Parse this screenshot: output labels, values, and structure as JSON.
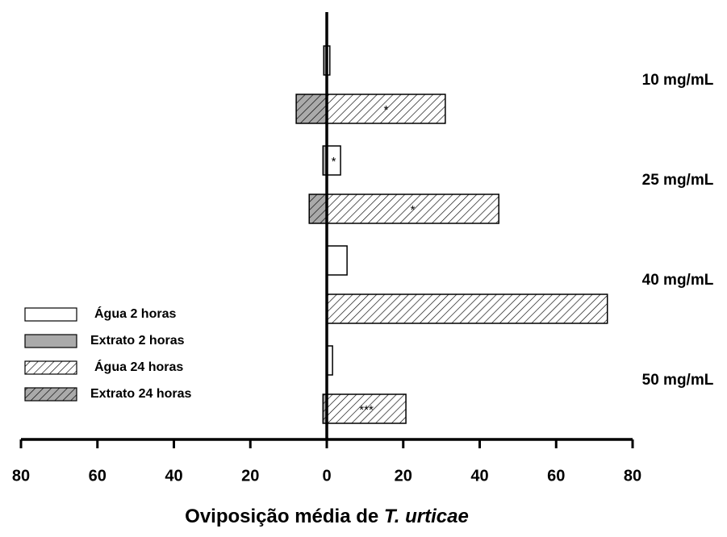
{
  "chart_data": {
    "type": "butterfly-bar",
    "categories": [
      "10 mg/mL",
      "25 mg/mL",
      "40 mg/mL",
      "50 mg/mL"
    ],
    "series": [
      {
        "name": "Água 2 horas",
        "color": "#ffffff",
        "hatch": false,
        "side": "right",
        "values": [
          0.8,
          3.6,
          5.3,
          1.5
        ],
        "significance": [
          null,
          "*",
          null,
          null
        ]
      },
      {
        "name": "Extrato 2 horas",
        "color": "#aaaaaa",
        "hatch": false,
        "side": "left",
        "values": [
          0.8,
          1,
          0,
          0
        ]
      },
      {
        "name": "Água 24 horas",
        "color": "#ffffff",
        "hatch": true,
        "side": "right",
        "values": [
          31,
          45,
          73.4,
          20.7
        ],
        "significance": [
          "*",
          "*",
          null,
          "***"
        ]
      },
      {
        "name": "Extrato 24 horas",
        "color": "#aaaaaa",
        "hatch": true,
        "side": "left",
        "values": [
          8,
          4.6,
          0,
          1
        ]
      }
    ],
    "xlim": [
      -80,
      80
    ],
    "xticks": [
      {
        "value": -80,
        "label": "80"
      },
      {
        "value": -60,
        "label": "60"
      },
      {
        "value": -40,
        "label": "40"
      },
      {
        "value": -20,
        "label": "20"
      },
      0,
      20,
      40,
      60,
      80
    ],
    "xlabel": "Oviposição média de",
    "xlabel_species": "T. urticae",
    "legend": "center left"
  }
}
